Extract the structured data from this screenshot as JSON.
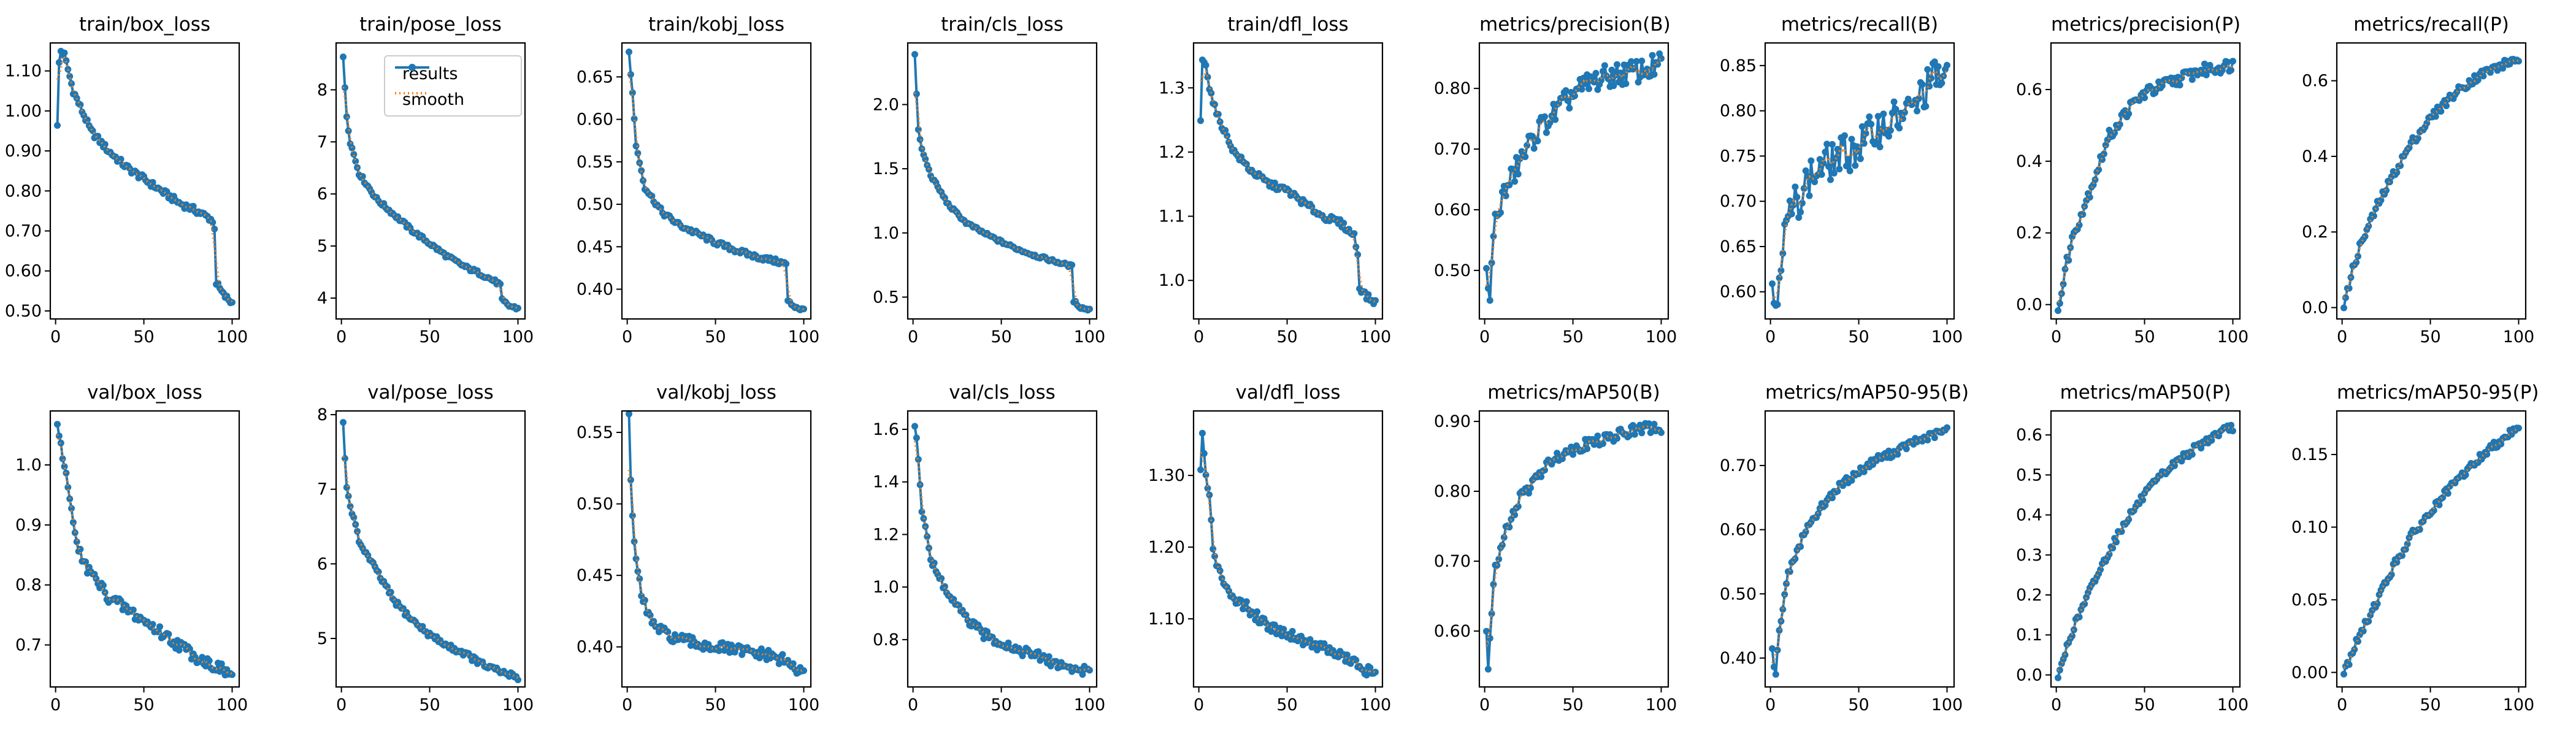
{
  "legend": {
    "results_label": "results",
    "smooth_label": "smooth"
  },
  "colors": {
    "results": "#1f77b4",
    "smooth": "#ff7f0e"
  },
  "chart_data": [
    {
      "type": "line",
      "title": "train/box_loss",
      "ylim": [
        0.48,
        1.17
      ],
      "xlim": [
        -3,
        104
      ],
      "xticks": [
        0,
        50,
        100
      ],
      "yticks": [
        0.5,
        0.6,
        0.7,
        0.8,
        0.9,
        1.0,
        1.1
      ],
      "anchors": [
        [
          1,
          0.96
        ],
        [
          2,
          1.12
        ],
        [
          3,
          1.15
        ],
        [
          5,
          1.14
        ],
        [
          10,
          1.05
        ],
        [
          20,
          0.95
        ],
        [
          30,
          0.9
        ],
        [
          40,
          0.86
        ],
        [
          50,
          0.83
        ],
        [
          60,
          0.8
        ],
        [
          70,
          0.77
        ],
        [
          80,
          0.75
        ],
        [
          88,
          0.73
        ],
        [
          90,
          0.71
        ],
        [
          91,
          0.57
        ],
        [
          95,
          0.54
        ],
        [
          100,
          0.52
        ]
      ],
      "noise": 0.008
    },
    {
      "type": "line",
      "title": "train/pose_loss",
      "ylim": [
        3.6,
        8.9
      ],
      "xlim": [
        -3,
        104
      ],
      "xticks": [
        0,
        50,
        100
      ],
      "yticks": [
        4,
        5,
        6,
        7,
        8
      ],
      "anchors": [
        [
          1,
          8.6
        ],
        [
          3,
          7.5
        ],
        [
          5,
          7.0
        ],
        [
          10,
          6.4
        ],
        [
          20,
          5.9
        ],
        [
          30,
          5.6
        ],
        [
          40,
          5.3
        ],
        [
          50,
          5.05
        ],
        [
          60,
          4.8
        ],
        [
          70,
          4.6
        ],
        [
          80,
          4.45
        ],
        [
          88,
          4.3
        ],
        [
          90,
          4.25
        ],
        [
          91,
          3.95
        ],
        [
          95,
          3.85
        ],
        [
          100,
          3.8
        ]
      ],
      "noise": 0.04
    },
    {
      "type": "line",
      "title": "train/kobj_loss",
      "ylim": [
        0.365,
        0.69
      ],
      "xlim": [
        -3,
        104
      ],
      "xticks": [
        0,
        50,
        100
      ],
      "yticks": [
        0.4,
        0.45,
        0.5,
        0.55,
        0.6,
        0.65
      ],
      "anchors": [
        [
          1,
          0.68
        ],
        [
          3,
          0.63
        ],
        [
          5,
          0.57
        ],
        [
          10,
          0.52
        ],
        [
          20,
          0.49
        ],
        [
          30,
          0.475
        ],
        [
          40,
          0.465
        ],
        [
          50,
          0.455
        ],
        [
          60,
          0.447
        ],
        [
          70,
          0.44
        ],
        [
          80,
          0.435
        ],
        [
          90,
          0.43
        ],
        [
          91,
          0.385
        ],
        [
          95,
          0.38
        ],
        [
          100,
          0.375
        ]
      ],
      "noise": 0.003
    },
    {
      "type": "line",
      "title": "train/cls_loss",
      "ylim": [
        0.33,
        2.48
      ],
      "xlim": [
        -3,
        104
      ],
      "xticks": [
        0,
        50,
        100
      ],
      "yticks": [
        0.5,
        1.0,
        1.5,
        2.0
      ],
      "anchors": [
        [
          1,
          2.38
        ],
        [
          3,
          1.8
        ],
        [
          5,
          1.65
        ],
        [
          10,
          1.45
        ],
        [
          20,
          1.22
        ],
        [
          30,
          1.08
        ],
        [
          40,
          1.0
        ],
        [
          50,
          0.93
        ],
        [
          60,
          0.87
        ],
        [
          70,
          0.82
        ],
        [
          80,
          0.78
        ],
        [
          90,
          0.74
        ],
        [
          91,
          0.47
        ],
        [
          95,
          0.42
        ],
        [
          100,
          0.4
        ]
      ],
      "noise": 0.012
    },
    {
      "type": "line",
      "title": "train/dfl_loss",
      "ylim": [
        0.94,
        1.37
      ],
      "xlim": [
        -3,
        104
      ],
      "xticks": [
        0,
        50,
        100
      ],
      "yticks": [
        1.0,
        1.1,
        1.2,
        1.3
      ],
      "anchors": [
        [
          1,
          1.25
        ],
        [
          2,
          1.34
        ],
        [
          4,
          1.34
        ],
        [
          6,
          1.3
        ],
        [
          10,
          1.26
        ],
        [
          20,
          1.2
        ],
        [
          30,
          1.17
        ],
        [
          40,
          1.15
        ],
        [
          50,
          1.14
        ],
        [
          60,
          1.12
        ],
        [
          70,
          1.1
        ],
        [
          80,
          1.09
        ],
        [
          88,
          1.07
        ],
        [
          90,
          1.04
        ],
        [
          91,
          0.99
        ],
        [
          95,
          0.975
        ],
        [
          100,
          0.965
        ]
      ],
      "noise": 0.005
    },
    {
      "type": "line",
      "title": "metrics/precision(B)",
      "ylim": [
        0.42,
        0.875
      ],
      "xlim": [
        -3,
        104
      ],
      "xticks": [
        0,
        50,
        100
      ],
      "yticks": [
        0.5,
        0.6,
        0.7,
        0.8
      ],
      "anchors": [
        [
          1,
          0.5
        ],
        [
          3,
          0.44
        ],
        [
          5,
          0.57
        ],
        [
          10,
          0.62
        ],
        [
          20,
          0.68
        ],
        [
          30,
          0.73
        ],
        [
          40,
          0.76
        ],
        [
          50,
          0.79
        ],
        [
          60,
          0.81
        ],
        [
          70,
          0.82
        ],
        [
          80,
          0.825
        ],
        [
          90,
          0.83
        ],
        [
          100,
          0.84
        ]
      ],
      "noise": 0.02
    },
    {
      "type": "line",
      "title": "metrics/recall(B)",
      "ylim": [
        0.57,
        0.875
      ],
      "xlim": [
        -3,
        104
      ],
      "xticks": [
        0,
        50,
        100
      ],
      "yticks": [
        0.6,
        0.65,
        0.7,
        0.75,
        0.8,
        0.85
      ],
      "anchors": [
        [
          1,
          0.61
        ],
        [
          3,
          0.585
        ],
        [
          5,
          0.63
        ],
        [
          10,
          0.68
        ],
        [
          20,
          0.72
        ],
        [
          30,
          0.74
        ],
        [
          40,
          0.75
        ],
        [
          50,
          0.76
        ],
        [
          60,
          0.78
        ],
        [
          70,
          0.79
        ],
        [
          80,
          0.8
        ],
        [
          90,
          0.83
        ],
        [
          95,
          0.84
        ],
        [
          100,
          0.83
        ]
      ],
      "noise": 0.022
    },
    {
      "type": "line",
      "title": "metrics/precision(P)",
      "ylim": [
        -0.04,
        0.73
      ],
      "xlim": [
        -3,
        104
      ],
      "xticks": [
        0,
        50,
        100
      ],
      "yticks": [
        0.0,
        0.2,
        0.4,
        0.6
      ],
      "anchors": [
        [
          1,
          0.0
        ],
        [
          3,
          0.03
        ],
        [
          6,
          0.12
        ],
        [
          10,
          0.2
        ],
        [
          20,
          0.33
        ],
        [
          30,
          0.47
        ],
        [
          40,
          0.54
        ],
        [
          50,
          0.59
        ],
        [
          60,
          0.61
        ],
        [
          70,
          0.63
        ],
        [
          80,
          0.65
        ],
        [
          90,
          0.66
        ],
        [
          100,
          0.67
        ]
      ],
      "noise": 0.018
    },
    {
      "type": "line",
      "title": "metrics/recall(P)",
      "ylim": [
        -0.03,
        0.7
      ],
      "xlim": [
        -3,
        104
      ],
      "xticks": [
        0,
        50,
        100
      ],
      "yticks": [
        0.0,
        0.2,
        0.4,
        0.6
      ],
      "anchors": [
        [
          1,
          0.01
        ],
        [
          3,
          0.04
        ],
        [
          6,
          0.1
        ],
        [
          10,
          0.16
        ],
        [
          20,
          0.27
        ],
        [
          30,
          0.36
        ],
        [
          40,
          0.44
        ],
        [
          50,
          0.5
        ],
        [
          60,
          0.55
        ],
        [
          70,
          0.59
        ],
        [
          80,
          0.62
        ],
        [
          90,
          0.64
        ],
        [
          100,
          0.66
        ]
      ],
      "noise": 0.012
    },
    {
      "type": "line",
      "title": "val/box_loss",
      "ylim": [
        0.63,
        1.09
      ],
      "xlim": [
        -3,
        104
      ],
      "xticks": [
        0,
        50,
        100
      ],
      "yticks": [
        0.7,
        0.8,
        0.9,
        1.0
      ],
      "anchors": [
        [
          1,
          1.07
        ],
        [
          3,
          1.03
        ],
        [
          5,
          0.99
        ],
        [
          8,
          0.95
        ],
        [
          10,
          0.9
        ],
        [
          15,
          0.84
        ],
        [
          20,
          0.82
        ],
        [
          30,
          0.78
        ],
        [
          40,
          0.76
        ],
        [
          50,
          0.74
        ],
        [
          60,
          0.72
        ],
        [
          70,
          0.7
        ],
        [
          80,
          0.68
        ],
        [
          90,
          0.665
        ],
        [
          100,
          0.65
        ]
      ],
      "noise": 0.01
    },
    {
      "type": "line",
      "title": "val/pose_loss",
      "ylim": [
        4.35,
        8.05
      ],
      "xlim": [
        -3,
        104
      ],
      "xticks": [
        0,
        50,
        100
      ],
      "yticks": [
        5,
        6,
        7,
        8
      ],
      "anchors": [
        [
          1,
          7.9
        ],
        [
          3,
          7.0
        ],
        [
          5,
          6.8
        ],
        [
          10,
          6.3
        ],
        [
          20,
          5.9
        ],
        [
          30,
          5.5
        ],
        [
          40,
          5.25
        ],
        [
          50,
          5.05
        ],
        [
          60,
          4.9
        ],
        [
          70,
          4.8
        ],
        [
          80,
          4.65
        ],
        [
          90,
          4.55
        ],
        [
          100,
          4.48
        ]
      ],
      "noise": 0.04
    },
    {
      "type": "line",
      "title": "val/kobj_loss",
      "ylim": [
        0.372,
        0.565
      ],
      "xlim": [
        -3,
        104
      ],
      "xticks": [
        0,
        50,
        100
      ],
      "yticks": [
        0.4,
        0.45,
        0.5,
        0.55
      ],
      "anchors": [
        [
          1,
          0.56
        ],
        [
          2,
          0.52
        ],
        [
          4,
          0.47
        ],
        [
          8,
          0.435
        ],
        [
          15,
          0.415
        ],
        [
          20,
          0.41
        ],
        [
          30,
          0.405
        ],
        [
          40,
          0.402
        ],
        [
          50,
          0.4
        ],
        [
          60,
          0.398
        ],
        [
          70,
          0.396
        ],
        [
          80,
          0.394
        ],
        [
          90,
          0.39
        ],
        [
          95,
          0.385
        ],
        [
          100,
          0.38
        ]
      ],
      "noise": 0.004
    },
    {
      "type": "line",
      "title": "val/cls_loss",
      "ylim": [
        0.62,
        1.67
      ],
      "xlim": [
        -3,
        104
      ],
      "xticks": [
        0,
        50,
        100
      ],
      "yticks": [
        0.8,
        1.0,
        1.2,
        1.4,
        1.6
      ],
      "anchors": [
        [
          1,
          1.62
        ],
        [
          3,
          1.48
        ],
        [
          5,
          1.3
        ],
        [
          8,
          1.2
        ],
        [
          10,
          1.1
        ],
        [
          20,
          0.97
        ],
        [
          30,
          0.88
        ],
        [
          40,
          0.82
        ],
        [
          50,
          0.79
        ],
        [
          60,
          0.76
        ],
        [
          70,
          0.74
        ],
        [
          80,
          0.71
        ],
        [
          90,
          0.69
        ],
        [
          100,
          0.68
        ]
      ],
      "noise": 0.018
    },
    {
      "type": "line",
      "title": "val/dfl_loss",
      "ylim": [
        1.005,
        1.39
      ],
      "xlim": [
        -3,
        104
      ],
      "xticks": [
        0,
        50,
        100
      ],
      "yticks": [
        1.1,
        1.2,
        1.3
      ],
      "anchors": [
        [
          1,
          1.3
        ],
        [
          2,
          1.36
        ],
        [
          4,
          1.3
        ],
        [
          6,
          1.27
        ],
        [
          8,
          1.2
        ],
        [
          10,
          1.17
        ],
        [
          20,
          1.13
        ],
        [
          30,
          1.11
        ],
        [
          40,
          1.09
        ],
        [
          50,
          1.08
        ],
        [
          60,
          1.07
        ],
        [
          70,
          1.06
        ],
        [
          80,
          1.05
        ],
        [
          90,
          1.035
        ],
        [
          100,
          1.02
        ]
      ],
      "noise": 0.008
    },
    {
      "type": "line",
      "title": "metrics/mAP50(B)",
      "ylim": [
        0.52,
        0.915
      ],
      "xlim": [
        -3,
        104
      ],
      "xticks": [
        0,
        50,
        100
      ],
      "yticks": [
        0.6,
        0.7,
        0.8,
        0.9
      ],
      "anchors": [
        [
          1,
          0.6
        ],
        [
          2,
          0.54
        ],
        [
          4,
          0.63
        ],
        [
          6,
          0.69
        ],
        [
          10,
          0.73
        ],
        [
          20,
          0.79
        ],
        [
          30,
          0.82
        ],
        [
          40,
          0.85
        ],
        [
          50,
          0.86
        ],
        [
          60,
          0.87
        ],
        [
          70,
          0.875
        ],
        [
          80,
          0.885
        ],
        [
          90,
          0.89
        ],
        [
          100,
          0.89
        ]
      ],
      "noise": 0.008
    },
    {
      "type": "line",
      "title": "metrics/mAP50-95(B)",
      "ylim": [
        0.355,
        0.785
      ],
      "xlim": [
        -3,
        104
      ],
      "xticks": [
        0,
        50,
        100
      ],
      "yticks": [
        0.4,
        0.5,
        0.6,
        0.7
      ],
      "anchors": [
        [
          1,
          0.42
        ],
        [
          2,
          0.39
        ],
        [
          3,
          0.38
        ],
        [
          5,
          0.44
        ],
        [
          8,
          0.5
        ],
        [
          10,
          0.53
        ],
        [
          20,
          0.6
        ],
        [
          30,
          0.64
        ],
        [
          40,
          0.67
        ],
        [
          50,
          0.69
        ],
        [
          60,
          0.71
        ],
        [
          70,
          0.72
        ],
        [
          80,
          0.735
        ],
        [
          90,
          0.745
        ],
        [
          100,
          0.755
        ]
      ],
      "noise": 0.006
    },
    {
      "type": "line",
      "title": "metrics/mAP50(P)",
      "ylim": [
        -0.03,
        0.66
      ],
      "xlim": [
        -3,
        104
      ],
      "xticks": [
        0,
        50,
        100
      ],
      "yticks": [
        0.0,
        0.1,
        0.2,
        0.3,
        0.4,
        0.5,
        0.6
      ],
      "anchors": [
        [
          1,
          0.0
        ],
        [
          3,
          0.02
        ],
        [
          6,
          0.07
        ],
        [
          10,
          0.12
        ],
        [
          20,
          0.22
        ],
        [
          30,
          0.31
        ],
        [
          40,
          0.39
        ],
        [
          50,
          0.45
        ],
        [
          60,
          0.5
        ],
        [
          70,
          0.54
        ],
        [
          80,
          0.57
        ],
        [
          90,
          0.6
        ],
        [
          100,
          0.62
        ]
      ],
      "noise": 0.01
    },
    {
      "type": "line",
      "title": "metrics/mAP50-95(P)",
      "ylim": [
        -0.01,
        0.18
      ],
      "xlim": [
        -3,
        104
      ],
      "xticks": [
        0,
        50,
        100
      ],
      "yticks": [
        0.0,
        0.05,
        0.1,
        0.15
      ],
      "anchors": [
        [
          1,
          0.0
        ],
        [
          3,
          0.005
        ],
        [
          6,
          0.015
        ],
        [
          10,
          0.025
        ],
        [
          20,
          0.05
        ],
        [
          30,
          0.075
        ],
        [
          40,
          0.095
        ],
        [
          50,
          0.11
        ],
        [
          60,
          0.125
        ],
        [
          70,
          0.138
        ],
        [
          80,
          0.15
        ],
        [
          90,
          0.16
        ],
        [
          100,
          0.17
        ]
      ],
      "noise": 0.003
    }
  ]
}
